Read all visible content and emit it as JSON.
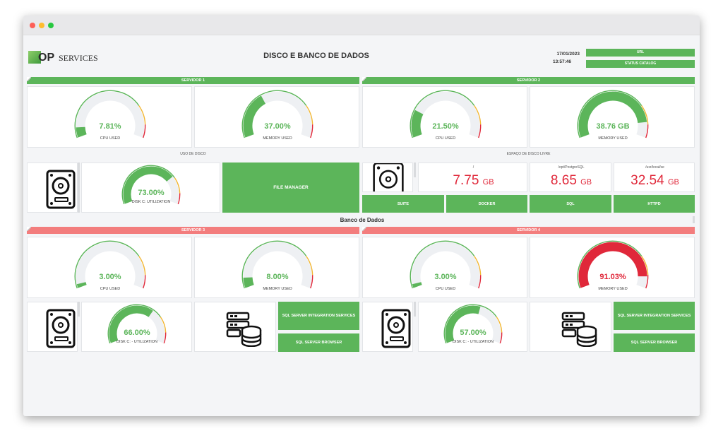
{
  "header": {
    "logo_op": "OP",
    "logo_services": "SERVICES",
    "title": "DISCO E BANCO DE DADOS",
    "date": "17/01/2023",
    "time": "13:57:46",
    "url_button": "URL",
    "status_button": "STATUS CATALOG"
  },
  "servers": {
    "s1": {
      "title": "SERVIDOR 1",
      "cpu": "7.81%",
      "cpu_label": "CPU USED",
      "cpu_fraction": 0.078,
      "mem": "37.00%",
      "mem_label": "MEMORY USED",
      "mem_fraction": 0.37
    },
    "s2": {
      "title": "SERVIDOR 2",
      "cpu": "21.50%",
      "cpu_label": "CPU USED",
      "cpu_fraction": 0.215,
      "mem": "38.76 GB",
      "mem_label": "MEMORY USED",
      "mem_fraction": 0.88
    },
    "s3": {
      "title": "SERVIDOR 3",
      "cpu": "3.00%",
      "cpu_label": "CPU USED",
      "cpu_fraction": 0.03,
      "mem": "8.00%",
      "mem_label": "MEMORY USED",
      "mem_fraction": 0.08
    },
    "s4": {
      "title": "SERVIDOR 4",
      "cpu": "3.00%",
      "cpu_label": "CPU USED",
      "cpu_fraction": 0.03,
      "mem": "91.03%",
      "mem_label": "MEMORY USED",
      "mem_fraction": 0.91
    }
  },
  "disk_usage": {
    "title": "USO DE DISCO",
    "value": "73.00%",
    "label": "DISK C: UTILIZATION",
    "fraction": 0.73,
    "file_manager": "FILE MANAGER"
  },
  "disk_free": {
    "title": "ESPAÇO DE DISCO LIVRE",
    "items": [
      {
        "path": "/",
        "value": "7.75",
        "unit": "GB"
      },
      {
        "path": "/opt/PostgreSQL",
        "value": "8.65",
        "unit": "GB"
      },
      {
        "path": "/usr/local/se",
        "value": "32.54",
        "unit": "GB"
      }
    ],
    "buttons": [
      "SUITE",
      "DOCKER",
      "SQL",
      "HTTPD"
    ]
  },
  "db_section_title": "Banco de Dados",
  "db3": {
    "disk_value": "66.00%",
    "disk_label": "DISK C: - UTILIZATION",
    "disk_fraction": 0.66,
    "btn_integration": "SQL SERVER INTEGRATION SERVICES",
    "btn_browser": "SQL SERVER BROWSER"
  },
  "db4": {
    "disk_value": "57.00%",
    "disk_label": "DISK C: - UTILIZATION",
    "disk_fraction": 0.57,
    "btn_integration": "SQL SERVER INTEGRATION SERVICES",
    "btn_browser": "SQL SERVER BROWSER"
  },
  "colors": {
    "green": "#5cb55a",
    "red_header": "#f37d7d",
    "red_value": "#e0283a",
    "track": "#eef0f3"
  }
}
